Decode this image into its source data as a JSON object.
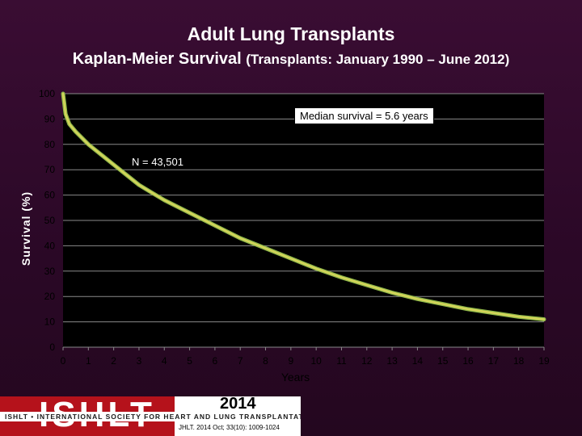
{
  "title": "Adult Lung Transplants",
  "subtitle_main": "Kaplan-Meier Survival",
  "subtitle_paren": "(Transplants: January 1990 – June 2012)",
  "chart_data": {
    "type": "line",
    "xlabel": "Years",
    "ylabel": "Survival (%)",
    "xlim": [
      0,
      19
    ],
    "ylim": [
      0,
      100
    ],
    "x_ticks": [
      0,
      1,
      2,
      3,
      4,
      5,
      6,
      7,
      8,
      9,
      10,
      11,
      12,
      13,
      14,
      15,
      16,
      17,
      18,
      19
    ],
    "y_ticks": [
      0,
      10,
      20,
      30,
      40,
      50,
      60,
      70,
      80,
      90,
      100
    ],
    "grid": "horizontal",
    "annotations": [
      "Median survival = 5.6 years",
      "N = 43,501"
    ],
    "series": [
      {
        "color": "#d4d45a",
        "x": [
          0,
          0.05,
          0.1,
          0.25,
          0.5,
          1,
          1.5,
          2,
          2.5,
          3,
          3.5,
          4,
          5,
          6,
          7,
          8,
          9,
          10,
          11,
          12,
          13,
          14,
          15,
          16,
          17,
          18,
          19
        ],
        "y": [
          100,
          96,
          92,
          88,
          85,
          80,
          76,
          72,
          68,
          64,
          61,
          58,
          53,
          48,
          43,
          39,
          35,
          31,
          27.5,
          24.5,
          21.5,
          19,
          17,
          15,
          13.5,
          12,
          11
        ]
      }
    ]
  },
  "footer": {
    "logo_text": "ISHLT",
    "society": "ISHLT • INTERNATIONAL SOCIETY FOR HEART AND LUNG TRANSPLANTATION",
    "year": "2014",
    "citation": "JHLT. 2014 Oct; 33(10): 1009-1024"
  }
}
